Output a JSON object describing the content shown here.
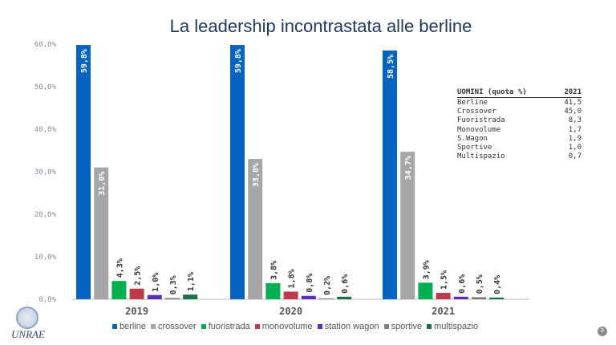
{
  "title": "La leadership incontrastata alle berline",
  "chart_data": {
    "type": "bar",
    "categories": [
      "2019",
      "2020",
      "2021"
    ],
    "series": [
      {
        "name": "berline",
        "color": "#0563c1",
        "values": [
          59.8,
          59.8,
          58.5
        ],
        "labels": [
          "59,8%",
          "59,8%",
          "58,5%"
        ]
      },
      {
        "name": "crossover",
        "color": "#a6a6a6",
        "values": [
          31.0,
          33.0,
          34.7
        ],
        "labels": [
          "31,0%",
          "33,0%",
          "34,7%"
        ]
      },
      {
        "name": "fuoristrada",
        "color": "#00b050",
        "values": [
          4.3,
          3.8,
          3.9
        ],
        "labels": [
          "4,3%",
          "3,8%",
          "3,9%"
        ]
      },
      {
        "name": "monovolume",
        "color": "#c0394b",
        "values": [
          2.5,
          1.8,
          1.5
        ],
        "labels": [
          "2,5%",
          "1,8%",
          "1,5%"
        ]
      },
      {
        "name": "station wagon",
        "color": "#5b2ebc",
        "values": [
          1.0,
          0.8,
          0.6
        ],
        "labels": [
          "1,0%",
          "0,8%",
          "0,6%"
        ]
      },
      {
        "name": "sportive",
        "color": "#7f7f7f",
        "values": [
          0.3,
          0.2,
          0.5
        ],
        "labels": [
          "0,3%",
          "0,2%",
          "0,5%"
        ]
      },
      {
        "name": "multispazio",
        "color": "#1e6e4a",
        "values": [
          1.1,
          0.6,
          0.4
        ],
        "labels": [
          "1,1%",
          "0,6%",
          "0,4%"
        ]
      }
    ],
    "ylim": [
      0,
      60
    ],
    "yticks": [
      0,
      10,
      20,
      30,
      40,
      50,
      60
    ],
    "ytick_labels": [
      "0,0%",
      "10,0%",
      "20,0%",
      "30,0%",
      "40,0%",
      "50,0%",
      "60,0%"
    ],
    "legend_position": "bottom",
    "grid": false
  },
  "table": {
    "header_label": "UOMINI (quota %)",
    "header_year": "2021",
    "rows": [
      {
        "label": "Berline",
        "value": "41,5"
      },
      {
        "label": "Crossover",
        "value": "45,0"
      },
      {
        "label": "Fuoristrada",
        "value": "8,3"
      },
      {
        "label": "Monovolume",
        "value": "1,7"
      },
      {
        "label": "S.Wagon",
        "value": "1,9"
      },
      {
        "label": "Sportive",
        "value": "1,0"
      },
      {
        "label": "Multispazio",
        "value": "0,7"
      }
    ]
  },
  "logo_text": "UNRAE",
  "page_number": "9"
}
